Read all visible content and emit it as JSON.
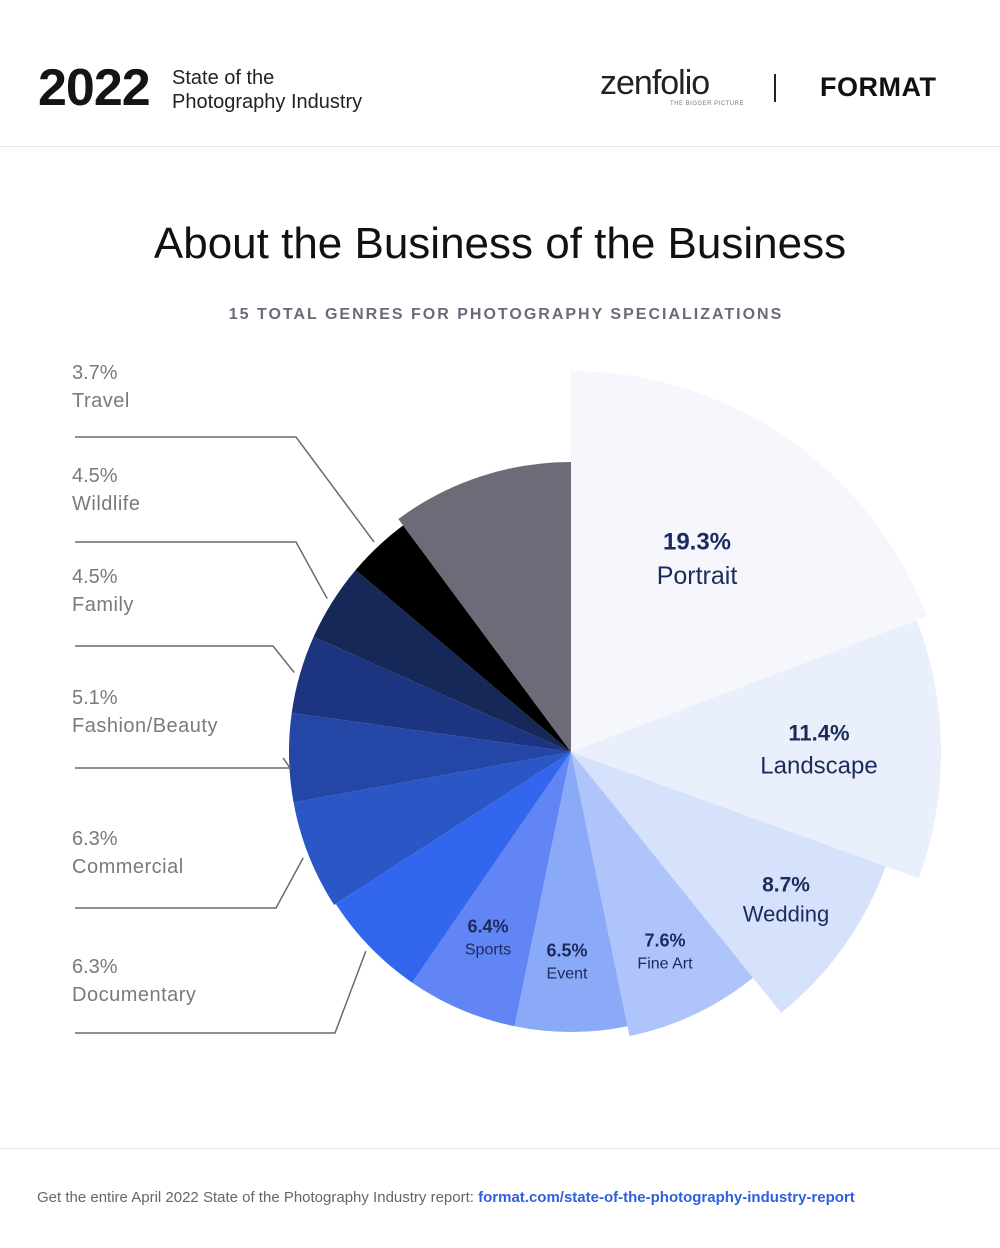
{
  "header": {
    "year": "2022",
    "subtitle_line1": "State of the",
    "subtitle_line2": "Photography Industry",
    "logo_zenfolio": "zenfolio",
    "logo_zenfolio_tagline": "THE BIGGER PICTURE",
    "logo_format": "FORMAT"
  },
  "chart_data": {
    "type": "pie",
    "title": "About the Business of the Business",
    "subtitle": "15 TOTAL GENRES FOR PHOTOGRAPHY SPECIALIZATIONS",
    "slices": [
      {
        "label": "Portrait",
        "value": 19.3,
        "value_label": "19.3%",
        "color": "#f5f7fc",
        "exploded": true
      },
      {
        "label": "Landscape",
        "value": 11.4,
        "value_label": "11.4%",
        "color": "#e9effb",
        "exploded": true
      },
      {
        "label": "Wedding",
        "value": 8.7,
        "value_label": "8.7%",
        "color": "#d6e2fb",
        "exploded": true
      },
      {
        "label": "Fine Art",
        "value": 7.6,
        "value_label": "7.6%",
        "color": "#aec4fa"
      },
      {
        "label": "Event",
        "value": 6.5,
        "value_label": "6.5%",
        "color": "#8aaaf8"
      },
      {
        "label": "Sports",
        "value": 6.4,
        "value_label": "6.4%",
        "color": "#6285f5"
      },
      {
        "label": "Documentary",
        "value": 6.3,
        "value_label": "6.3%",
        "color": "#3366ee"
      },
      {
        "label": "Commercial",
        "value": 6.3,
        "value_label": "6.3%",
        "color": "#2b56c6"
      },
      {
        "label": "Fashion/Beauty",
        "value": 5.1,
        "value_label": "5.1%",
        "color": "#2446a6"
      },
      {
        "label": "Family",
        "value": 4.5,
        "value_label": "4.5%",
        "color": "#1d3580"
      },
      {
        "label": "Wildlife",
        "value": 4.5,
        "value_label": "4.5%",
        "color": "#162858"
      },
      {
        "label": "Travel",
        "value": 3.7,
        "value_label": "3.7%",
        "color": "#000000"
      },
      {
        "label": "",
        "value": 10.2,
        "value_label": "",
        "color": "#6e6b78"
      }
    ]
  },
  "footer": {
    "text": "Get the entire April 2022 State of the Photography Industry report: ",
    "link": "format.com/state-of-the-photography-industry-report"
  }
}
